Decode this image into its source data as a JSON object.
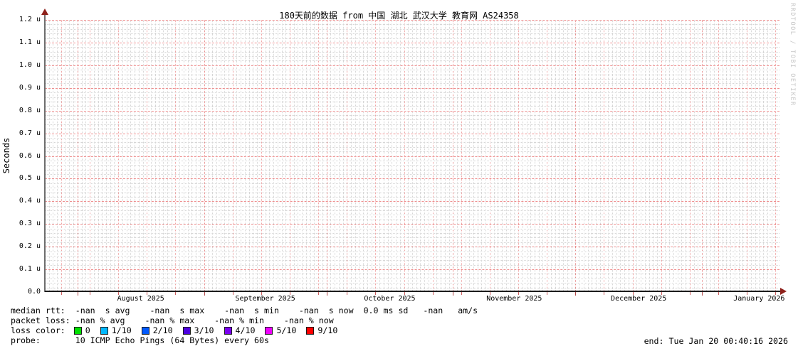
{
  "title": "180天前的数据 from  中国 湖北 武汉大学 教育网 AS24358",
  "watermark": "RRDTOOL / TOBI OETIKER",
  "y_axis": {
    "label": "Seconds",
    "tick_labels": [
      "0.0",
      "0.1 u",
      "0.2 u",
      "0.3 u",
      "0.4 u",
      "0.5 u",
      "0.6 u",
      "0.7 u",
      "0.8 u",
      "0.9 u",
      "1.0 u",
      "1.1 u",
      "1.2 u"
    ]
  },
  "x_axis": {
    "total_days": 180,
    "week_start_day": 4,
    "months": [
      {
        "label": "August 2025",
        "start_day": 8,
        "center_day": 23.5
      },
      {
        "label": "September 2025",
        "start_day": 39,
        "center_day": 54
      },
      {
        "label": "October 2025",
        "start_day": 69,
        "center_day": 84.5
      },
      {
        "label": "November 2025",
        "start_day": 100,
        "center_day": 115
      },
      {
        "label": "December 2025",
        "start_day": 130,
        "center_day": 145.5
      },
      {
        "label": "January 2026",
        "start_day": 161,
        "center_day": 175
      }
    ]
  },
  "chart_data": {
    "type": "line",
    "title": "180天前的数据 from  中国 湖北 武汉大学 教育网 AS24358",
    "xlabel": "",
    "ylabel": "Seconds",
    "ylim": [
      0,
      1.2e-06
    ],
    "y_tick_labels": [
      "0.0",
      "0.1 u",
      "0.2 u",
      "0.3 u",
      "0.4 u",
      "0.5 u",
      "0.6 u",
      "0.7 u",
      "0.8 u",
      "0.9 u",
      "1.0 u",
      "1.1 u",
      "1.2 u"
    ],
    "x_tick_labels": [
      "August 2025",
      "September 2025",
      "October 2025",
      "November 2025",
      "December 2025",
      "January 2026"
    ],
    "x_span_days": 180,
    "grid": true,
    "series": [],
    "stats": {
      "median_rtt": {
        "avg": "-nan",
        "max": "-nan",
        "min": "-nan",
        "now": "-nan",
        "sd": "0.0 ms"
      },
      "packet_loss": {
        "avg": "-nan",
        "max": "-nan",
        "min": "-nan",
        "now": "-nan"
      }
    }
  },
  "legend": {
    "median_rtt": "median rtt:  -nan  s avg    -nan  s max    -nan  s min    -nan  s now  0.0 ms sd   -nan   am/s",
    "packet_loss": "packet loss: -nan % avg    -nan % max    -nan % min    -nan % now",
    "loss_color_label": "loss color:",
    "loss_colors": [
      {
        "label": "0",
        "color": "#00e000"
      },
      {
        "label": "1/10",
        "color": "#00b8ff"
      },
      {
        "label": "2/10",
        "color": "#0059ff"
      },
      {
        "label": "3/10",
        "color": "#4d00e0"
      },
      {
        "label": "4/10",
        "color": "#7a00f0"
      },
      {
        "label": "5/10",
        "color": "#ee00ff"
      },
      {
        "label": "9/10",
        "color": "#ff0000"
      }
    ],
    "probe": "probe:       10 ICMP Echo Pings (64 Bytes) every 60s",
    "end": "end: Tue Jan 20 00:40:16 2026"
  },
  "colors": {
    "grid_minor": "#d6d6d6",
    "grid_major": "#ee8f8f",
    "axis_arrow": "#8e211b",
    "watermark": "#c8c8c8"
  }
}
